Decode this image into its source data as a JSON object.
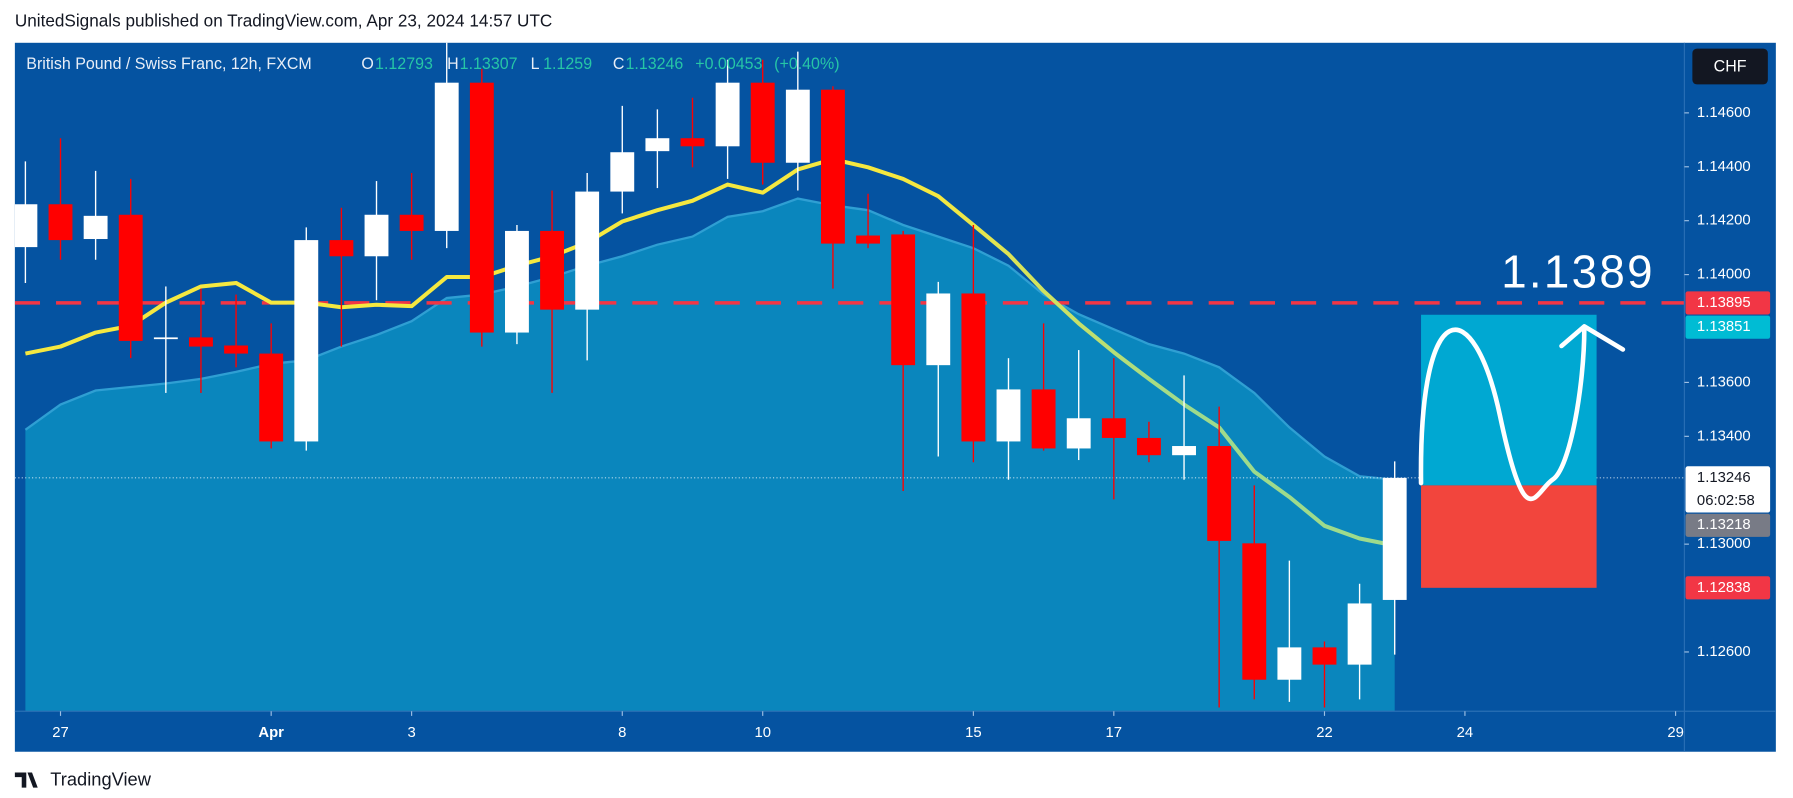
{
  "header": {
    "text": "UnitedSignals published on TradingView.com, Apr 23, 2024 14:57 UTC"
  },
  "footer": {
    "brand": "TradingView"
  },
  "chart_data": {
    "type": "candlestick",
    "symbol": "British Pound / Swiss Franc, 12h, FXCM",
    "currency": "CHF",
    "legend_letters": [
      "O",
      "H",
      "L",
      "C"
    ],
    "change": {
      "value": 0.00453,
      "label": "+0.00453"
    },
    "change_percent": {
      "value": 0.4,
      "label": "(+0.40%)"
    },
    "x": [
      0,
      1,
      2,
      3,
      4,
      5,
      6,
      7,
      8,
      9,
      10,
      11,
      12,
      13,
      14,
      15,
      16,
      17,
      18,
      19,
      20,
      21,
      22,
      23,
      24,
      25,
      26,
      27,
      28,
      29,
      30,
      31,
      32,
      33,
      34,
      35,
      36,
      37,
      38,
      39
    ],
    "open": [
      1.14102,
      1.14261,
      1.14132,
      1.14222,
      1.13763,
      1.13767,
      1.13737,
      1.13707,
      1.13381,
      1.14128,
      1.14068,
      1.14222,
      1.14162,
      1.14712,
      1.13785,
      1.14162,
      1.1387,
      1.14308,
      1.14458,
      1.14506,
      1.14476,
      1.14712,
      1.14415,
      1.14686,
      1.14145,
      1.14149,
      1.13664,
      1.1393,
      1.13381,
      1.13574,
      1.13355,
      1.13467,
      1.13394,
      1.1333,
      1.13364,
      1.13003,
      1.12497,
      1.12617,
      1.12553,
      1.12793
    ],
    "high": [
      1.1442,
      1.14506,
      1.14385,
      1.14355,
      1.13956,
      1.13948,
      1.13926,
      1.13819,
      1.14175,
      1.14248,
      1.14347,
      1.14377,
      1.14862,
      1.14763,
      1.14184,
      1.14312,
      1.14377,
      1.14626,
      1.14613,
      1.14656,
      1.14797,
      1.14797,
      1.14827,
      1.14699,
      1.143,
      1.14162,
      1.13973,
      1.14184,
      1.1369,
      1.13819,
      1.1372,
      1.1369,
      1.13454,
      1.13626,
      1.1351,
      1.13218,
      1.12939,
      1.12639,
      1.12853,
      1.13307
    ],
    "low": [
      1.13969,
      1.14055,
      1.14055,
      1.1369,
      1.13561,
      1.13561,
      1.13656,
      1.13355,
      1.13347,
      1.13733,
      1.13905,
      1.14055,
      1.14098,
      1.13733,
      1.13742,
      1.13561,
      1.13682,
      1.14227,
      1.14321,
      1.14398,
      1.14355,
      1.14334,
      1.14312,
      1.13948,
      1.14098,
      1.13197,
      1.13325,
      1.13304,
      1.13239,
      1.13347,
      1.13312,
      1.13166,
      1.13304,
      1.13239,
      1.12394,
      1.12424,
      1.12415,
      1.12394,
      1.12424,
      1.1259
    ],
    "close": [
      1.14261,
      1.14128,
      1.14218,
      1.13754,
      1.13767,
      1.13733,
      1.13707,
      1.13381,
      1.14128,
      1.14068,
      1.14222,
      1.14162,
      1.14712,
      1.13785,
      1.14162,
      1.1387,
      1.14308,
      1.14454,
      1.14506,
      1.14476,
      1.14712,
      1.14415,
      1.14686,
      1.14115,
      1.14115,
      1.13664,
      1.1393,
      1.13381,
      1.13574,
      1.13355,
      1.13467,
      1.13394,
      1.1333,
      1.13364,
      1.13012,
      1.12497,
      1.12617,
      1.12553,
      1.1278,
      1.13246
    ],
    "up_color": "#ffffff",
    "down_color": "#ff0000",
    "line": {
      "color": "#f5e840",
      "end_color": "#9edb8c",
      "values": [
        1.13707,
        1.13733,
        1.13785,
        1.1381,
        1.13896,
        1.13956,
        1.13969,
        1.13896,
        1.13896,
        1.13879,
        1.13888,
        1.13883,
        1.13991,
        1.13991,
        1.14033,
        1.14068,
        1.14119,
        1.14197,
        1.14239,
        1.14274,
        1.14334,
        1.14304,
        1.1439,
        1.14428,
        1.14398,
        1.14355,
        1.14291,
        1.14184,
        1.14076,
        1.13939,
        1.13819,
        1.13712,
        1.13613,
        1.13518,
        1.13433,
        1.13269,
        1.13175,
        1.13068,
        1.13021,
        1.12995
      ]
    },
    "band": {
      "color": "#0a86bd",
      "edge_color": "#2f9fd3",
      "values": [
        1.13424,
        1.13518,
        1.1357,
        1.13583,
        1.13596,
        1.13613,
        1.13639,
        1.13669,
        1.13682,
        1.13733,
        1.13776,
        1.13827,
        1.13913,
        1.13926,
        1.13956,
        1.13991,
        1.14033,
        1.14068,
        1.14111,
        1.14141,
        1.14214,
        1.14235,
        1.14282,
        1.14257,
        1.14239,
        1.14184,
        1.14141,
        1.14098,
        1.14033,
        1.13926,
        1.13853,
        1.13797,
        1.13742,
        1.13707,
        1.13656,
        1.13561,
        1.13433,
        1.13325,
        1.13252,
        1.13239
      ]
    },
    "xlim": [
      -0.3,
      47.25
    ],
    "ylim": [
      1.1238,
      1.1486
    ],
    "xticks": [
      {
        "value": 1,
        "label": "27"
      },
      {
        "value": 7,
        "label": "Apr"
      },
      {
        "value": 11,
        "label": "3"
      },
      {
        "value": 17,
        "label": "8"
      },
      {
        "value": 21,
        "label": "10"
      },
      {
        "value": 27,
        "label": "15"
      },
      {
        "value": 31,
        "label": "17"
      },
      {
        "value": 37,
        "label": "22"
      },
      {
        "value": 41,
        "label": "24"
      },
      {
        "value": 47,
        "label": "29"
      }
    ],
    "yticks": [
      {
        "value": 1.146,
        "label": "1.14600"
      },
      {
        "value": 1.144,
        "label": "1.14400"
      },
      {
        "value": 1.142,
        "label": "1.14200"
      },
      {
        "value": 1.14,
        "label": "1.14000"
      },
      {
        "value": 1.136,
        "label": "1.13600"
      },
      {
        "value": 1.134,
        "label": "1.13400"
      },
      {
        "value": 1.13,
        "label": "1.13000"
      },
      {
        "value": 1.126,
        "label": "1.12600"
      }
    ],
    "grid": false,
    "price_labels": [
      {
        "value": 1.13895,
        "color": "#f23645"
      },
      {
        "value": 1.13851,
        "color": "#00bcd4"
      },
      {
        "value": 1.13246,
        "color": "#ffffff",
        "countdown": "06:02:58"
      },
      {
        "value": 1.13218,
        "color": "#787b86"
      },
      {
        "value": 1.12838,
        "color": "#f23645"
      }
    ],
    "annotation": "1.1389",
    "position": {
      "x": [
        39.75,
        44.75
      ],
      "target": 1.13851,
      "entry": 1.13218,
      "stop": 1.12838,
      "target_color": "#00a8d2",
      "stop_color": "#f2453d"
    }
  }
}
